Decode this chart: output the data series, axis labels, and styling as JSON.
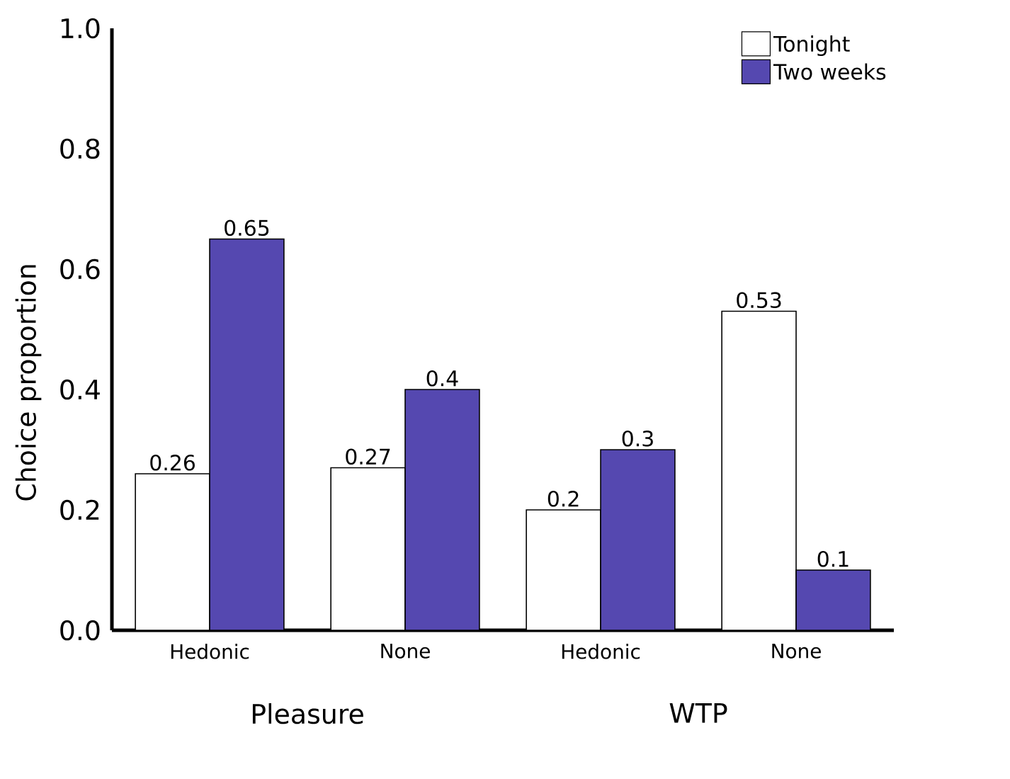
{
  "chart_data": {
    "type": "bar",
    "ylabel": "Choice proportion",
    "categories": [
      "Hedonic",
      "None",
      "Hedonic",
      "None"
    ],
    "series": [
      {
        "name": "Tonight",
        "color": "#ffffff",
        "values": [
          0.26,
          0.27,
          0.2,
          0.53
        ]
      },
      {
        "name": "Two weeks",
        "color": "#5548b0",
        "values": [
          0.65,
          0.4,
          0.3,
          0.1
        ]
      }
    ],
    "ylim": [
      0,
      1
    ],
    "yticks": [
      {
        "value": 0,
        "label": "0.0"
      },
      {
        "value": 0.2,
        "label": "0.2"
      },
      {
        "value": 0.4,
        "label": "0.4"
      },
      {
        "value": 0.6,
        "label": "0.6"
      },
      {
        "value": 0.8,
        "label": "0.8"
      },
      {
        "value": 1,
        "label": "1.0"
      }
    ],
    "annotations": [
      "Pleasure",
      "WTP"
    ],
    "data_labels": true,
    "legend": "top right",
    "grid": false
  }
}
